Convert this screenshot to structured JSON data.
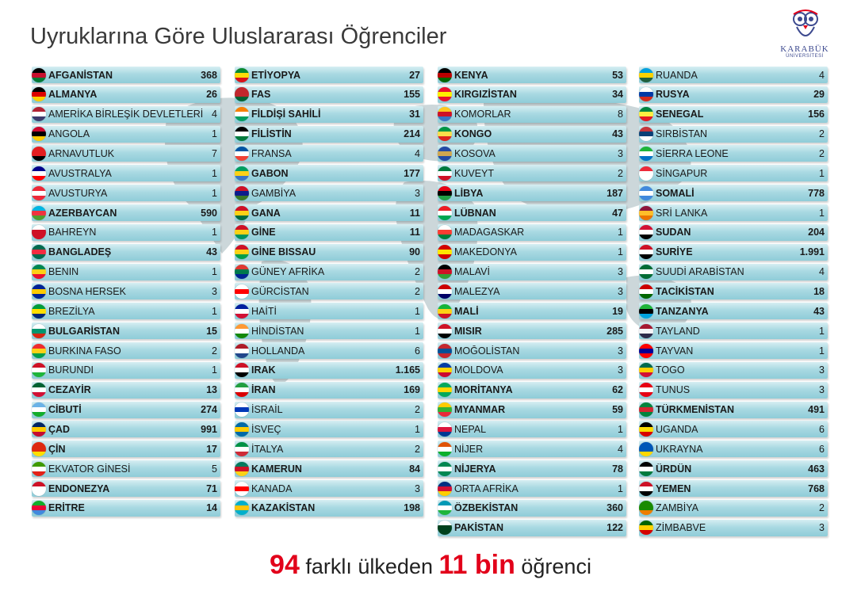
{
  "title": "Uyruklarına Göre Uluslararası Öğrenciler",
  "logo": {
    "line1": "KARABÜK",
    "line2": "ÜNİVERSİTESİ"
  },
  "summary": {
    "countries": "94",
    "text1": "farklı ülkeden",
    "students": "11 bin",
    "text2": "öğrenci"
  },
  "colors": {
    "accent": "#e2001a",
    "row_top": "#d6eef2",
    "row_bottom": "#8fccd8"
  },
  "columns": [
    [
      {
        "name": "AFGANİSTAN",
        "count": "368",
        "bold": true,
        "flag": [
          "#000000",
          "#c8102e",
          "#007a36"
        ]
      },
      {
        "name": "ALMANYA",
        "count": "26",
        "bold": true,
        "flag": [
          "#000000",
          "#dd0000",
          "#ffce00"
        ]
      },
      {
        "name": "AMERİKA BİRLEŞİK DEVLETLERİ",
        "count": "4",
        "bold": false,
        "flag": [
          "#b22234",
          "#ffffff",
          "#3c3b6e"
        ]
      },
      {
        "name": "ANGOLA",
        "count": "1",
        "bold": false,
        "flag": [
          "#cc092f",
          "#000000",
          "#ffcb00"
        ]
      },
      {
        "name": "ARNAVUTLUK",
        "count": "7",
        "bold": false,
        "flag": [
          "#e41e20",
          "#e41e20",
          "#000000"
        ]
      },
      {
        "name": "AVUSTRALYA",
        "count": "1",
        "bold": false,
        "flag": [
          "#00008b",
          "#ffffff",
          "#ff0000"
        ]
      },
      {
        "name": "AVUSTURYA",
        "count": "1",
        "bold": false,
        "flag": [
          "#ed2939",
          "#ffffff",
          "#ed2939"
        ]
      },
      {
        "name": "AZERBAYCAN",
        "count": "590",
        "bold": true,
        "flag": [
          "#00b5e2",
          "#ef3340",
          "#509e2f"
        ]
      },
      {
        "name": "BAHREYN",
        "count": "1",
        "bold": false,
        "flag": [
          "#ffffff",
          "#ce1126",
          "#ce1126"
        ]
      },
      {
        "name": "BANGLADEŞ",
        "count": "43",
        "bold": true,
        "flag": [
          "#006a4e",
          "#f42a41",
          "#006a4e"
        ]
      },
      {
        "name": "BENIN",
        "count": "1",
        "bold": false,
        "flag": [
          "#008751",
          "#fcd116",
          "#e8112d"
        ]
      },
      {
        "name": "BOSNA HERSEK",
        "count": "3",
        "bold": false,
        "flag": [
          "#002395",
          "#fecb00",
          "#002395"
        ]
      },
      {
        "name": "BREZİLYA",
        "count": "1",
        "bold": false,
        "flag": [
          "#009c3b",
          "#ffdf00",
          "#002776"
        ]
      },
      {
        "name": "BULGARİSTAN",
        "count": "15",
        "bold": true,
        "flag": [
          "#ffffff",
          "#00966e",
          "#d62612"
        ]
      },
      {
        "name": "BURKINA FASO",
        "count": "2",
        "bold": false,
        "flag": [
          "#ef2b2d",
          "#fcd116",
          "#009e49"
        ]
      },
      {
        "name": "BURUNDI",
        "count": "1",
        "bold": false,
        "flag": [
          "#ce1126",
          "#ffffff",
          "#1eb53a"
        ]
      },
      {
        "name": "CEZAYİR",
        "count": "13",
        "bold": true,
        "flag": [
          "#006233",
          "#ffffff",
          "#d21034"
        ]
      },
      {
        "name": "CİBUTİ",
        "count": "274",
        "bold": true,
        "flag": [
          "#6ab2e7",
          "#ffffff",
          "#12ad2b"
        ]
      },
      {
        "name": "ÇAD",
        "count": "991",
        "bold": true,
        "flag": [
          "#002664",
          "#fecb00",
          "#c60c30"
        ]
      },
      {
        "name": "ÇİN",
        "count": "17",
        "bold": true,
        "flag": [
          "#de2910",
          "#de2910",
          "#ffde00"
        ]
      },
      {
        "name": "EKVATOR GİNESİ",
        "count": "5",
        "bold": false,
        "flag": [
          "#3e9a00",
          "#ffffff",
          "#e32118"
        ]
      },
      {
        "name": "ENDONEZYA",
        "count": "71",
        "bold": true,
        "flag": [
          "#ce1126",
          "#ffffff",
          "#ffffff"
        ]
      },
      {
        "name": "ERİTRE",
        "count": "14",
        "bold": true,
        "flag": [
          "#12ad2b",
          "#ea0437",
          "#4189dd"
        ]
      }
    ],
    [
      {
        "name": "ETİYOPYA",
        "count": "27",
        "bold": true,
        "flag": [
          "#078930",
          "#fcdd09",
          "#da121a"
        ]
      },
      {
        "name": "FAS",
        "count": "155",
        "bold": true,
        "flag": [
          "#c1272d",
          "#c1272d",
          "#006233"
        ]
      },
      {
        "name": "FİLDİŞİ SAHİLİ",
        "count": "31",
        "bold": true,
        "flag": [
          "#f77f00",
          "#ffffff",
          "#009e60"
        ]
      },
      {
        "name": "FİLİSTİN",
        "count": "214",
        "bold": true,
        "flag": [
          "#000000",
          "#ffffff",
          "#007a3d"
        ]
      },
      {
        "name": "FRANSA",
        "count": "4",
        "bold": false,
        "flag": [
          "#0055a4",
          "#ffffff",
          "#ef4135"
        ]
      },
      {
        "name": "GABON",
        "count": "177",
        "bold": true,
        "flag": [
          "#009e60",
          "#fcd116",
          "#3a75c4"
        ]
      },
      {
        "name": "GAMBİYA",
        "count": "3",
        "bold": false,
        "flag": [
          "#ce1126",
          "#0c1c8c",
          "#3a7728"
        ]
      },
      {
        "name": "GANA",
        "count": "11",
        "bold": true,
        "flag": [
          "#ce1126",
          "#fcd116",
          "#006b3f"
        ]
      },
      {
        "name": "GİNE",
        "count": "11",
        "bold": true,
        "flag": [
          "#ce1126",
          "#fcd116",
          "#009460"
        ]
      },
      {
        "name": "GİNE BISSAU",
        "count": "90",
        "bold": true,
        "flag": [
          "#ce1126",
          "#fcd116",
          "#009e49"
        ]
      },
      {
        "name": "GÜNEY AFRİKA",
        "count": "2",
        "bold": false,
        "flag": [
          "#de3831",
          "#007a4d",
          "#002395"
        ]
      },
      {
        "name": "GÜRCİSTAN",
        "count": "2",
        "bold": false,
        "flag": [
          "#ffffff",
          "#ff0000",
          "#ffffff"
        ]
      },
      {
        "name": "HAİTİ",
        "count": "1",
        "bold": false,
        "flag": [
          "#00209f",
          "#ffffff",
          "#d21034"
        ]
      },
      {
        "name": "HİNDİSTAN",
        "count": "1",
        "bold": false,
        "flag": [
          "#ff9933",
          "#ffffff",
          "#138808"
        ]
      },
      {
        "name": "HOLLANDA",
        "count": "6",
        "bold": false,
        "flag": [
          "#ae1c28",
          "#ffffff",
          "#21468b"
        ]
      },
      {
        "name": "IRAK",
        "count": "1.165",
        "bold": true,
        "flag": [
          "#ce1126",
          "#ffffff",
          "#000000"
        ]
      },
      {
        "name": "İRAN",
        "count": "169",
        "bold": true,
        "flag": [
          "#239f40",
          "#ffffff",
          "#da0000"
        ]
      },
      {
        "name": "İSRAİL",
        "count": "2",
        "bold": false,
        "flag": [
          "#ffffff",
          "#0038b8",
          "#ffffff"
        ]
      },
      {
        "name": "İSVEÇ",
        "count": "1",
        "bold": false,
        "flag": [
          "#006aa7",
          "#fecc00",
          "#006aa7"
        ]
      },
      {
        "name": "İTALYA",
        "count": "2",
        "bold": false,
        "flag": [
          "#009246",
          "#ffffff",
          "#ce2b37"
        ]
      },
      {
        "name": "KAMERUN",
        "count": "84",
        "bold": true,
        "flag": [
          "#007a5e",
          "#ce1126",
          "#fcd116"
        ]
      },
      {
        "name": "KANADA",
        "count": "3",
        "bold": false,
        "flag": [
          "#ffffff",
          "#ff0000",
          "#ffffff"
        ]
      },
      {
        "name": "KAZAKİSTAN",
        "count": "198",
        "bold": true,
        "flag": [
          "#00afca",
          "#fec50c",
          "#00afca"
        ]
      }
    ],
    [
      {
        "name": "KENYA",
        "count": "53",
        "bold": true,
        "flag": [
          "#000000",
          "#bb0000",
          "#006600"
        ]
      },
      {
        "name": "KIRGIZİSTAN",
        "count": "34",
        "bold": true,
        "flag": [
          "#e8112d",
          "#ffef00",
          "#e8112d"
        ]
      },
      {
        "name": "KOMORLAR",
        "count": "8",
        "bold": false,
        "flag": [
          "#ffc61e",
          "#ce1126",
          "#3a75c4"
        ]
      },
      {
        "name": "KONGO",
        "count": "43",
        "bold": true,
        "flag": [
          "#009543",
          "#fbde4a",
          "#dc241f"
        ]
      },
      {
        "name": "KOSOVA",
        "count": "3",
        "bold": false,
        "flag": [
          "#244aa5",
          "#d0a650",
          "#244aa5"
        ]
      },
      {
        "name": "KUVEYT",
        "count": "2",
        "bold": false,
        "flag": [
          "#007a3d",
          "#ffffff",
          "#ce1126"
        ]
      },
      {
        "name": "LİBYA",
        "count": "187",
        "bold": true,
        "flag": [
          "#e70013",
          "#000000",
          "#239e46"
        ]
      },
      {
        "name": "LÜBNAN",
        "count": "47",
        "bold": true,
        "flag": [
          "#ed1c24",
          "#ffffff",
          "#00a651"
        ]
      },
      {
        "name": "MADAGASKAR",
        "count": "1",
        "bold": false,
        "flag": [
          "#ffffff",
          "#fc3d32",
          "#007e3a"
        ]
      },
      {
        "name": "MAKEDONYA",
        "count": "1",
        "bold": false,
        "flag": [
          "#d20000",
          "#ffe600",
          "#d20000"
        ]
      },
      {
        "name": "MALAVİ",
        "count": "3",
        "bold": false,
        "flag": [
          "#000000",
          "#ce1126",
          "#339e35"
        ]
      },
      {
        "name": "MALEZYA",
        "count": "3",
        "bold": false,
        "flag": [
          "#cc0001",
          "#ffffff",
          "#010066"
        ]
      },
      {
        "name": "MALİ",
        "count": "19",
        "bold": true,
        "flag": [
          "#14b53a",
          "#fcd116",
          "#ce1126"
        ]
      },
      {
        "name": "MISIR",
        "count": "285",
        "bold": true,
        "flag": [
          "#ce1126",
          "#ffffff",
          "#000000"
        ]
      },
      {
        "name": "MOĞOLİSTAN",
        "count": "3",
        "bold": false,
        "flag": [
          "#c4272f",
          "#015197",
          "#c4272f"
        ]
      },
      {
        "name": "MOLDOVA",
        "count": "3",
        "bold": false,
        "flag": [
          "#003da5",
          "#ffd200",
          "#cc092f"
        ]
      },
      {
        "name": "MORİTANYA",
        "count": "62",
        "bold": true,
        "flag": [
          "#00a95c",
          "#ffd700",
          "#00a95c"
        ]
      },
      {
        "name": "MYANMAR",
        "count": "59",
        "bold": true,
        "flag": [
          "#fecb00",
          "#34b233",
          "#ea2839"
        ]
      },
      {
        "name": "NEPAL",
        "count": "1",
        "bold": false,
        "flag": [
          "#ffffff",
          "#dc143c",
          "#003893"
        ]
      },
      {
        "name": "NİJER",
        "count": "4",
        "bold": false,
        "flag": [
          "#e05206",
          "#ffffff",
          "#0db02b"
        ]
      },
      {
        "name": "NİJERYA",
        "count": "78",
        "bold": true,
        "flag": [
          "#008751",
          "#ffffff",
          "#008751"
        ]
      },
      {
        "name": "ORTA AFRİKA",
        "count": "1",
        "bold": false,
        "flag": [
          "#003082",
          "#d21034",
          "#ffce00"
        ]
      },
      {
        "name": "ÖZBEKİSTAN",
        "count": "360",
        "bold": true,
        "flag": [
          "#0099b5",
          "#ffffff",
          "#1eb53a"
        ]
      },
      {
        "name": "PAKİSTAN",
        "count": "122",
        "bold": true,
        "flag": [
          "#ffffff",
          "#01411c",
          "#01411c"
        ]
      }
    ],
    [
      {
        "name": "RUANDA",
        "count": "4",
        "bold": false,
        "flag": [
          "#00a1de",
          "#fad201",
          "#20603d"
        ]
      },
      {
        "name": "RUSYA",
        "count": "29",
        "bold": true,
        "flag": [
          "#ffffff",
          "#0039a6",
          "#d52b1e"
        ]
      },
      {
        "name": "SENEGAL",
        "count": "156",
        "bold": true,
        "flag": [
          "#00853f",
          "#fdef42",
          "#e31b23"
        ]
      },
      {
        "name": "SIRBİSTAN",
        "count": "2",
        "bold": false,
        "flag": [
          "#c6363c",
          "#0c4076",
          "#ffffff"
        ]
      },
      {
        "name": "SİERRA LEONE",
        "count": "2",
        "bold": false,
        "flag": [
          "#1eb53a",
          "#ffffff",
          "#0072c6"
        ]
      },
      {
        "name": "SİNGAPUR",
        "count": "1",
        "bold": false,
        "flag": [
          "#ed2939",
          "#ffffff",
          "#ffffff"
        ]
      },
      {
        "name": "SOMALİ",
        "count": "778",
        "bold": true,
        "flag": [
          "#4189dd",
          "#ffffff",
          "#4189dd"
        ]
      },
      {
        "name": "SRİ LANKA",
        "count": "1",
        "bold": false,
        "flag": [
          "#8d153a",
          "#ffbe29",
          "#eb7400"
        ]
      },
      {
        "name": "SUDAN",
        "count": "204",
        "bold": true,
        "flag": [
          "#d21034",
          "#ffffff",
          "#000000"
        ]
      },
      {
        "name": "SURİYE",
        "count": "1.991",
        "bold": true,
        "flag": [
          "#ce1126",
          "#ffffff",
          "#000000"
        ]
      },
      {
        "name": "SUUDİ ARABİSTAN",
        "count": "4",
        "bold": false,
        "flag": [
          "#006c35",
          "#ffffff",
          "#006c35"
        ]
      },
      {
        "name": "TACİKİSTAN",
        "count": "18",
        "bold": true,
        "flag": [
          "#cc0000",
          "#ffffff",
          "#006600"
        ]
      },
      {
        "name": "TANZANYA",
        "count": "43",
        "bold": true,
        "flag": [
          "#1eb53a",
          "#000000",
          "#00a3dd"
        ]
      },
      {
        "name": "TAYLAND",
        "count": "1",
        "bold": false,
        "flag": [
          "#a51931",
          "#f4f5f8",
          "#2d2a4a"
        ]
      },
      {
        "name": "TAYVAN",
        "count": "1",
        "bold": false,
        "flag": [
          "#fe0000",
          "#000095",
          "#fe0000"
        ]
      },
      {
        "name": "TOGO",
        "count": "3",
        "bold": false,
        "flag": [
          "#006a4e",
          "#ffce00",
          "#d21034"
        ]
      },
      {
        "name": "TUNUS",
        "count": "3",
        "bold": false,
        "flag": [
          "#e70013",
          "#ffffff",
          "#e70013"
        ]
      },
      {
        "name": "TÜRKMENİSTAN",
        "count": "491",
        "bold": true,
        "flag": [
          "#00843d",
          "#d22630",
          "#00843d"
        ]
      },
      {
        "name": "UGANDA",
        "count": "6",
        "bold": false,
        "flag": [
          "#000000",
          "#fcdc04",
          "#d90000"
        ]
      },
      {
        "name": "UKRAYNA",
        "count": "6",
        "bold": false,
        "flag": [
          "#0057b7",
          "#0057b7",
          "#ffd700"
        ]
      },
      {
        "name": "ÜRDÜN",
        "count": "463",
        "bold": true,
        "flag": [
          "#000000",
          "#ffffff",
          "#007a3d"
        ]
      },
      {
        "name": "YEMEN",
        "count": "768",
        "bold": true,
        "flag": [
          "#ce1126",
          "#ffffff",
          "#000000"
        ]
      },
      {
        "name": "ZAMBİYA",
        "count": "2",
        "bold": false,
        "flag": [
          "#198a00",
          "#198a00",
          "#ef7d00"
        ]
      },
      {
        "name": "ZİMBABVE",
        "count": "3",
        "bold": false,
        "flag": [
          "#006400",
          "#ffd200",
          "#d40000"
        ]
      }
    ]
  ]
}
